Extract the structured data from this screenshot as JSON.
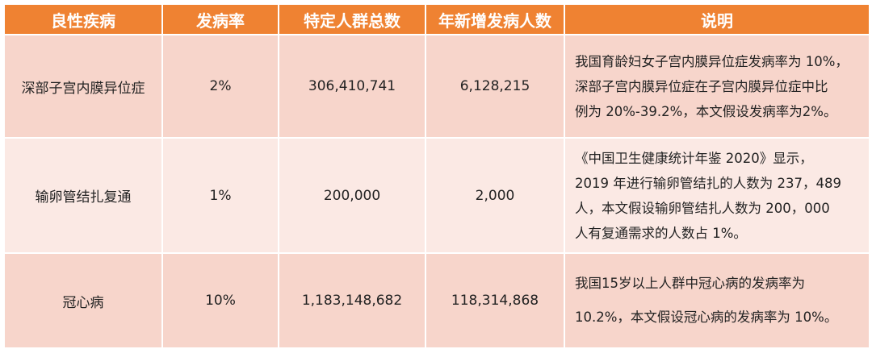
{
  "headers": [
    "良性疾病",
    "发病率",
    "特定人群总数",
    "年新增发病人数",
    "说明"
  ],
  "rows": [
    {
      "disease": "深部子宫内膜异位症",
      "rate": "2%",
      "population": "306,410,741",
      "new_cases": "6,128,215",
      "note_lines": [
        "我国育龄妇女子宫内膜异位症发病率为 10%，",
        "深部子宫内膜异位症在子宫内膜异位症中比",
        "例为 20%-39.2%，本文假设发病率为2%。"
      ]
    },
    {
      "disease": "输卵管结扎复通",
      "rate": "1%",
      "population": "200,000",
      "new_cases": "2,000",
      "note_lines": [
        "《中国卫生健康统计年鉴 2020》显示，",
        "2019 年进行输卵管结扎的人数为 237，489",
        "人，本文假设输卵管结扎人数为 200，000",
        "人有复通需求的人数占 1%。"
      ]
    },
    {
      "disease": "冠心病",
      "rate": "10%",
      "population": "1,183,148,682",
      "new_cases": "118,314,868",
      "note_lines": [
        "我国15岁以上人群中冠心病的发病率为",
        "10.2%，本文假设冠心病的发病率为 10%。"
      ]
    }
  ]
}
